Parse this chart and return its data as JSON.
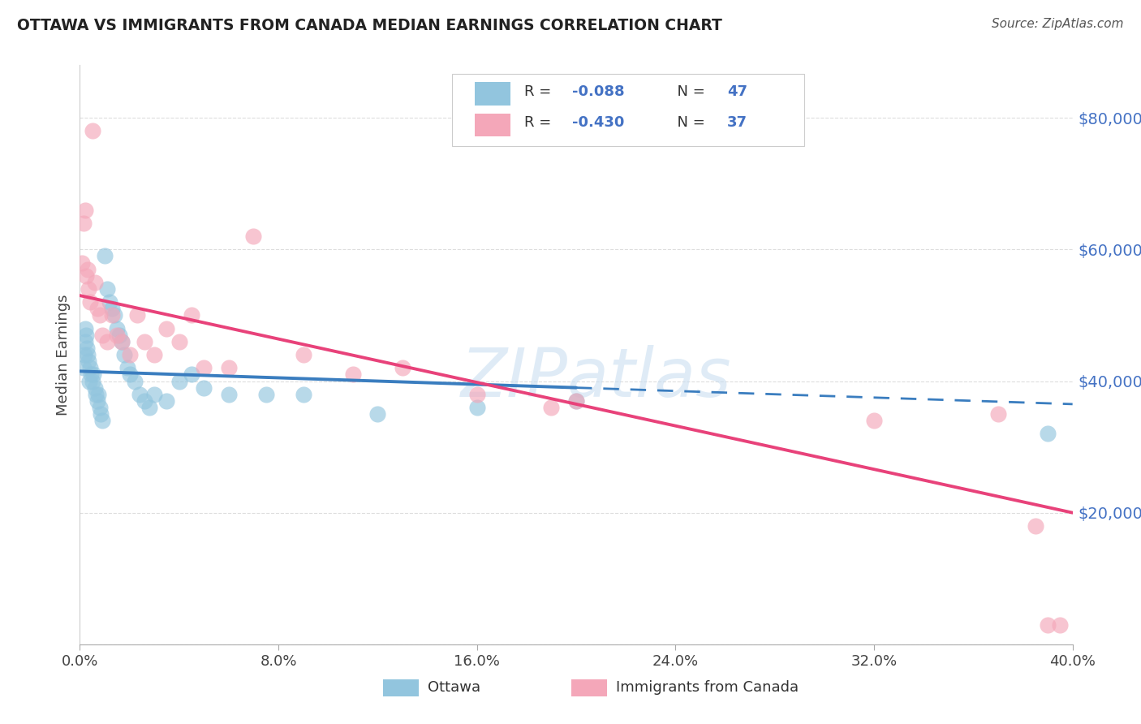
{
  "title": "OTTAWA VS IMMIGRANTS FROM CANADA MEDIAN EARNINGS CORRELATION CHART",
  "source": "Source: ZipAtlas.com",
  "ylabel": "Median Earnings",
  "yticks": [
    0,
    20000,
    40000,
    60000,
    80000
  ],
  "ytick_labels": [
    "",
    "$20,000",
    "$40,000",
    "$60,000",
    "$80,000"
  ],
  "xmin": 0.0,
  "xmax": 40.0,
  "ymin": 0,
  "ymax": 88000,
  "legend_r1": "-0.088",
  "legend_n1": "47",
  "legend_r2": "-0.430",
  "legend_n2": "37",
  "legend_label1": "Ottawa",
  "legend_label2": "Immigrants from Canada",
  "blue_scatter_color": "#92c5de",
  "pink_scatter_color": "#f4a7b9",
  "blue_line_color": "#3a7dbf",
  "pink_line_color": "#e8427a",
  "watermark": "ZIPatlas",
  "watermark_color": "#c5dcf0",
  "blue_line_y0": 41500,
  "blue_line_y40": 36500,
  "pink_line_y0": 53000,
  "pink_line_y40": 20000,
  "blue_dash_start": 20.0,
  "ottawa_x": [
    0.15,
    0.18,
    0.2,
    0.22,
    0.25,
    0.28,
    0.3,
    0.35,
    0.38,
    0.4,
    0.45,
    0.5,
    0.55,
    0.6,
    0.65,
    0.7,
    0.75,
    0.8,
    0.85,
    0.9,
    1.0,
    1.1,
    1.2,
    1.3,
    1.4,
    1.5,
    1.6,
    1.7,
    1.8,
    1.9,
    2.0,
    2.2,
    2.4,
    2.6,
    2.8,
    3.0,
    3.5,
    4.0,
    4.5,
    5.0,
    6.0,
    7.5,
    9.0,
    12.0,
    16.0,
    20.0,
    39.0
  ],
  "ottawa_y": [
    42000,
    44000,
    46000,
    48000,
    47000,
    45000,
    44000,
    43000,
    40000,
    42000,
    41000,
    40000,
    41000,
    39000,
    38000,
    37000,
    38000,
    36000,
    35000,
    34000,
    59000,
    54000,
    52000,
    51000,
    50000,
    48000,
    47000,
    46000,
    44000,
    42000,
    41000,
    40000,
    38000,
    37000,
    36000,
    38000,
    37000,
    40000,
    41000,
    39000,
    38000,
    38000,
    38000,
    35000,
    36000,
    37000,
    32000
  ],
  "immigrants_x": [
    0.1,
    0.15,
    0.2,
    0.25,
    0.3,
    0.35,
    0.4,
    0.5,
    0.6,
    0.7,
    0.8,
    0.9,
    1.1,
    1.3,
    1.5,
    1.7,
    2.0,
    2.3,
    2.6,
    3.0,
    3.5,
    4.0,
    4.5,
    5.0,
    6.0,
    7.0,
    9.0,
    11.0,
    13.0,
    16.0,
    19.0,
    20.0,
    32.0,
    37.0,
    38.5,
    39.0,
    39.5
  ],
  "immigrants_y": [
    58000,
    64000,
    66000,
    56000,
    57000,
    54000,
    52000,
    78000,
    55000,
    51000,
    50000,
    47000,
    46000,
    50000,
    47000,
    46000,
    44000,
    50000,
    46000,
    44000,
    48000,
    46000,
    50000,
    42000,
    42000,
    62000,
    44000,
    41000,
    42000,
    38000,
    36000,
    37000,
    34000,
    35000,
    18000,
    3000,
    3000
  ]
}
